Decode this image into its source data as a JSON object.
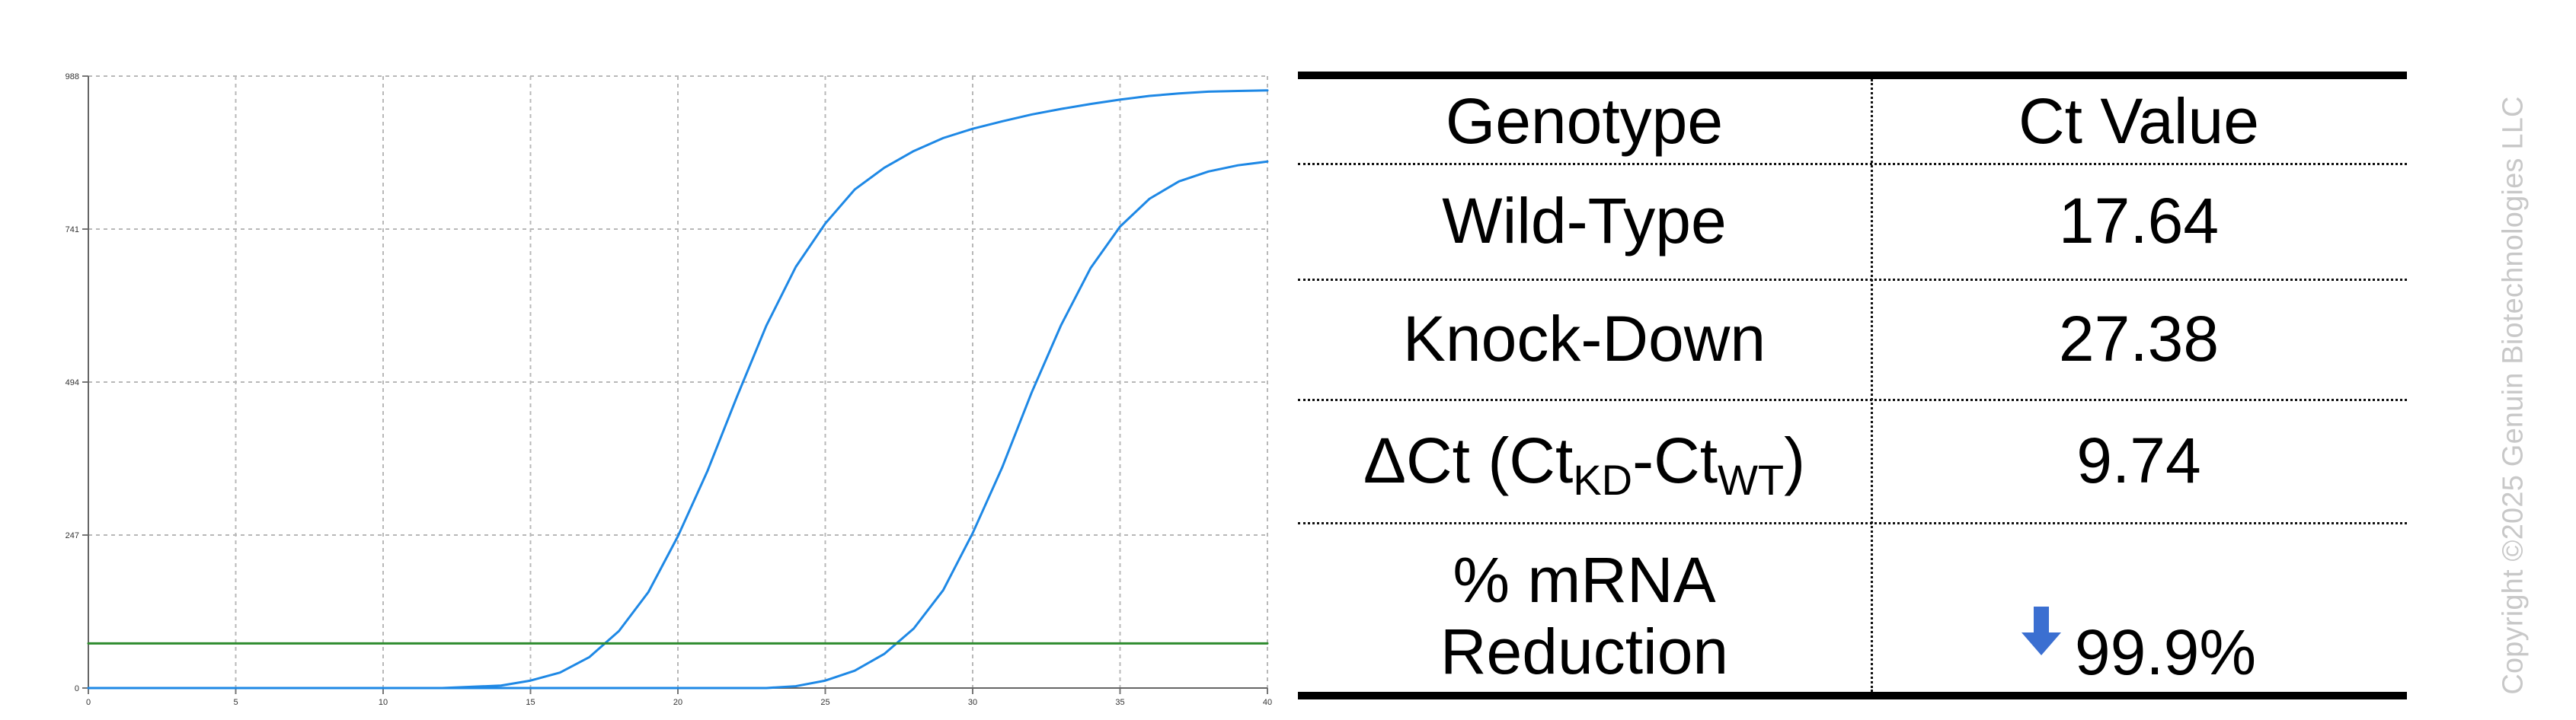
{
  "chart_data": {
    "type": "line",
    "title": "",
    "xlabel": "",
    "ylabel": "",
    "xlim": [
      0,
      40
    ],
    "ylim": [
      0,
      988
    ],
    "x_ticks": [
      0,
      5,
      10,
      15,
      20,
      25,
      30,
      35,
      40
    ],
    "y_ticks": [
      0,
      247,
      494,
      741,
      988
    ],
    "grid": true,
    "series": [
      {
        "color": "#1e88e5",
        "points": [
          [
            0,
            0
          ],
          [
            12,
            0
          ],
          [
            14,
            4
          ],
          [
            15,
            12
          ],
          [
            16,
            25
          ],
          [
            17,
            50
          ],
          [
            18,
            92
          ],
          [
            19,
            155
          ],
          [
            20,
            245
          ],
          [
            21,
            350
          ],
          [
            22,
            470
          ],
          [
            23,
            585
          ],
          [
            24,
            680
          ],
          [
            25,
            750
          ],
          [
            26,
            805
          ],
          [
            27,
            840
          ],
          [
            28,
            867
          ],
          [
            29,
            888
          ],
          [
            30,
            903
          ],
          [
            31,
            915
          ],
          [
            32,
            926
          ],
          [
            33,
            935
          ],
          [
            34,
            943
          ],
          [
            35,
            950
          ],
          [
            36,
            956
          ],
          [
            37,
            960
          ],
          [
            38,
            963
          ],
          [
            39,
            964
          ],
          [
            40,
            965
          ]
        ]
      },
      {
        "color": "#1e88e5",
        "points": [
          [
            0,
            0
          ],
          [
            23,
            0
          ],
          [
            24,
            3
          ],
          [
            25,
            12
          ],
          [
            26,
            28
          ],
          [
            27,
            55
          ],
          [
            28,
            96
          ],
          [
            29,
            158
          ],
          [
            30,
            250
          ],
          [
            31,
            356
          ],
          [
            32,
            477
          ],
          [
            33,
            586
          ],
          [
            34,
            678
          ],
          [
            35,
            745
          ],
          [
            36,
            790
          ],
          [
            37,
            818
          ],
          [
            38,
            834
          ],
          [
            39,
            844
          ],
          [
            40,
            850
          ]
        ]
      },
      {
        "color": "#2e8b2e",
        "points": [
          [
            0,
            72
          ],
          [
            40,
            72
          ]
        ]
      }
    ]
  },
  "table": {
    "headers": {
      "genotype": "Genotype",
      "ct_value": "Ct Value"
    },
    "rows": {
      "wild_type": {
        "label": "Wild-Type",
        "value": "17.64"
      },
      "knock_down": {
        "label": "Knock-Down",
        "value": "27.38"
      },
      "delta": {
        "prefix": "ΔCt (Ct",
        "sub_kd": "KD",
        "middle": "-Ct",
        "sub_wt": "WT",
        "suffix": ")",
        "value": "9.74"
      },
      "reduction": {
        "label_line_1": "% mRNA",
        "label_line_2": "Reduction",
        "value": "99.9%",
        "arrow_icon": "down-arrow-icon",
        "arrow_color": "#3b6fd1"
      }
    }
  },
  "copyright": "Copyright ©2025 Genuin Biotechnologies LLC"
}
